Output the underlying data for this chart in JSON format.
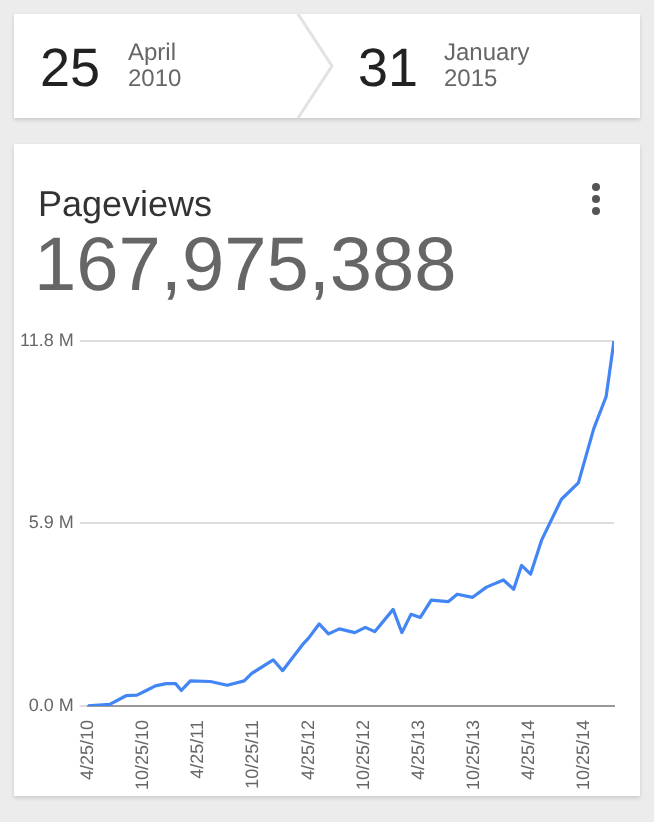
{
  "chart_data": {
    "type": "line",
    "title": "Pageviews",
    "subtitle": "167,975,388",
    "annotations": [
      "25",
      "April",
      "2010",
      "31",
      "January",
      "2015"
    ],
    "x": [
      "2010-04-25",
      "2010-07-07",
      "2010-08-30",
      "2010-10-05",
      "2010-11-05",
      "2010-12-05",
      "2011-01-10",
      "2011-02-10",
      "2011-03-01",
      "2011-03-31",
      "2011-06-05",
      "2011-07-31",
      "2011-09-25",
      "2011-10-20",
      "2011-12-30",
      "2012-01-30",
      "2012-04-05",
      "2012-04-25",
      "2012-05-30",
      "2012-06-30",
      "2012-08-05",
      "2012-09-25",
      "2012-10-30",
      "2012-11-30",
      "2013-01-30",
      "2013-02-28",
      "2013-03-30",
      "2013-04-30",
      "2013-06-05",
      "2013-07-31",
      "2013-08-30",
      "2013-10-20",
      "2013-12-05",
      "2014-01-30",
      "2014-03-05",
      "2014-03-31",
      "2014-04-30",
      "2014-06-05",
      "2014-08-10",
      "2014-10-05",
      "2014-11-25",
      "2015-01-05",
      "2015-01-31"
    ],
    "series": [
      {
        "color": "#4285f4",
        "values": [
          0,
          0.05,
          0.33,
          0.35,
          0.5,
          0.65,
          0.72,
          0.72,
          0.5,
          0.81,
          0.79,
          0.67,
          0.81,
          1.05,
          1.49,
          1.14,
          1.98,
          2.19,
          2.65,
          2.33,
          2.49,
          2.37,
          2.54,
          2.4,
          3.12,
          2.37,
          2.96,
          2.86,
          3.42,
          3.37,
          3.61,
          3.51,
          3.84,
          4.07,
          3.77,
          4.54,
          4.26,
          5.35,
          6.68,
          7.21,
          8.96,
          10.0,
          11.8
        ]
      }
    ],
    "xlim": [
      "2010-04-25",
      "2015-01-31"
    ],
    "xticks": [
      {
        "value": "2010-04-25",
        "label": "4/25/10"
      },
      {
        "value": "2010-10-25",
        "label": "10/25/10"
      },
      {
        "value": "2011-04-25",
        "label": "4/25/11"
      },
      {
        "value": "2011-10-25",
        "label": "10/25/11"
      },
      {
        "value": "2012-04-25",
        "label": "4/25/12"
      },
      {
        "value": "2012-10-25",
        "label": "10/25/12"
      },
      {
        "value": "2013-04-25",
        "label": "4/25/13"
      },
      {
        "value": "2013-10-25",
        "label": "10/25/13"
      },
      {
        "value": "2014-04-25",
        "label": "4/25/14"
      },
      {
        "value": "2014-10-25",
        "label": "10/25/14"
      }
    ],
    "ylim": [
      0,
      11.8
    ],
    "yticks": [
      {
        "value": 0,
        "label": "0.0 M"
      },
      {
        "value": 5.9,
        "label": "5.9 M"
      },
      {
        "value": 11.8,
        "label": "11.8 M"
      }
    ],
    "grid": "y",
    "legend": false,
    "marker": "none",
    "line_style": "solid"
  }
}
